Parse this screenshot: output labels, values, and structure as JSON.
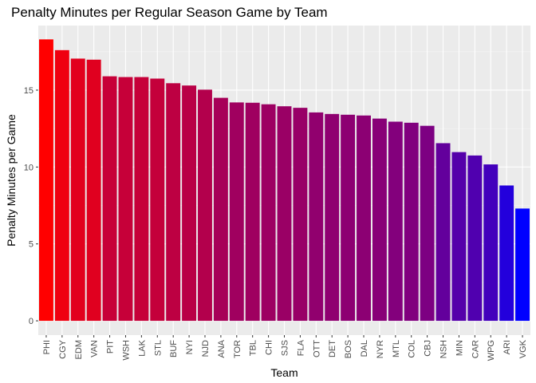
{
  "chart_data": {
    "type": "bar",
    "title": "Penalty Minutes per Regular Season Game by Team",
    "xlabel": "Team",
    "ylabel": "Penalty Minutes per Game",
    "categories": [
      "PHI",
      "CGY",
      "EDM",
      "VAN",
      "PIT",
      "WSH",
      "LAK",
      "STL",
      "BUF",
      "NYI",
      "NJD",
      "ANA",
      "TOR",
      "TBL",
      "CHI",
      "SJS",
      "FLA",
      "OTT",
      "DET",
      "BOS",
      "DAL",
      "NYR",
      "MTL",
      "COL",
      "CBJ",
      "NSH",
      "MIN",
      "CAR",
      "WPG",
      "ARI",
      "VGK"
    ],
    "values": [
      18.3,
      17.6,
      17.05,
      16.98,
      15.9,
      15.85,
      15.85,
      15.75,
      15.45,
      15.3,
      15.03,
      14.5,
      14.2,
      14.18,
      14.08,
      13.95,
      13.85,
      13.55,
      13.45,
      13.4,
      13.35,
      13.15,
      12.95,
      12.88,
      12.68,
      11.55,
      10.97,
      10.75,
      10.17,
      8.8,
      7.3
    ],
    "ylim": [
      -0.93,
      19.2
    ],
    "yticks": [
      0,
      5,
      10,
      15
    ],
    "grid": true,
    "legend": "none",
    "colors": {
      "panel_background": "#ebebeb",
      "grid_major": "#ffffff",
      "grid_minor": "#f5f5f5",
      "bar_high": "#ff0000",
      "bar_low": "#0000ff",
      "tick_text": "#4d4d4d",
      "tick_mark": "#333333"
    }
  }
}
